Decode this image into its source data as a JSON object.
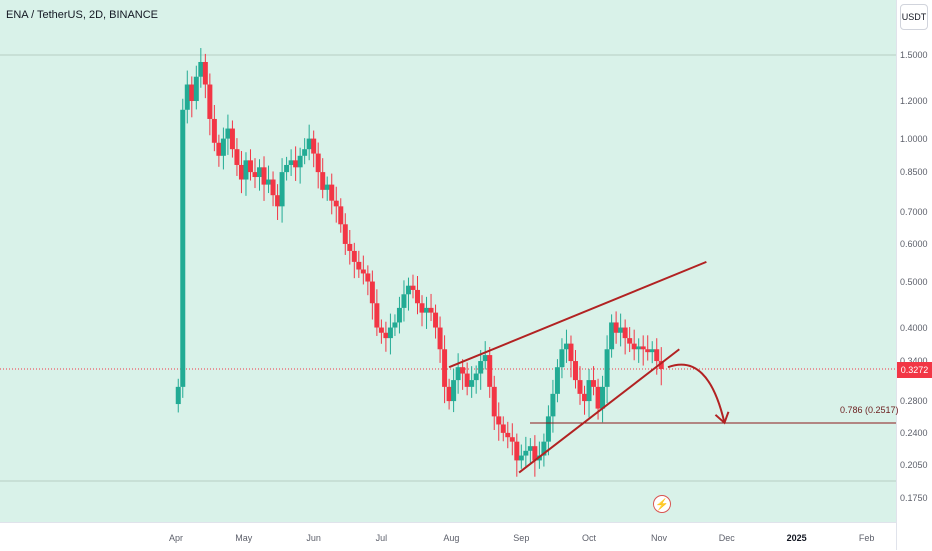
{
  "header": {
    "symbol_title": "ENA / TetherUS, 2D, BINANCE",
    "currency_button": "USDT"
  },
  "price_axis": {
    "labels": [
      "1.5000",
      "1.2000",
      "1.0000",
      "0.8500",
      "0.7000",
      "0.6000",
      "0.5000",
      "0.4000",
      "0.3400",
      "0.2800",
      "0.2400",
      "0.2050",
      "0.1750"
    ],
    "current_price": "0.3272"
  },
  "time_axis": {
    "labels": [
      "Apr",
      "May",
      "Jun",
      "Jul",
      "Aug",
      "Sep",
      "Oct",
      "Nov",
      "Dec",
      "2025",
      "Feb"
    ]
  },
  "annotations": {
    "fib_label": "0.786 (0.2517)",
    "bolt_icon": "lightning-bolt-icon"
  },
  "colors": {
    "background": "#d9f2e9",
    "up_candle": "#22ab94",
    "down_candle": "#f23645",
    "drawing": "#b22222"
  },
  "chart_data": {
    "type": "candlestick",
    "title": "ENA / TetherUS, 2D, BINANCE",
    "scale": "log",
    "ylim": [
      0.16,
      1.8
    ],
    "x_ticks": [
      "Apr",
      "May",
      "Jun",
      "Jul",
      "Aug",
      "Sep",
      "Oct",
      "Nov",
      "Dec",
      "2025",
      "Feb"
    ],
    "current_price": 0.3272,
    "fib_level": {
      "label": "0.786",
      "value": 0.2517
    },
    "series": [
      {
        "name": "ENA/USDT 2D close (approx.)",
        "x": [
          "2024-04-02",
          "2024-04-04",
          "2024-04-06",
          "2024-04-08",
          "2024-04-10",
          "2024-04-12",
          "2024-04-14",
          "2024-04-16",
          "2024-04-18",
          "2024-04-20",
          "2024-04-22",
          "2024-04-24",
          "2024-04-26",
          "2024-04-28",
          "2024-04-30",
          "2024-05-02",
          "2024-05-04",
          "2024-05-06",
          "2024-05-08",
          "2024-05-10",
          "2024-05-12",
          "2024-05-14",
          "2024-05-16",
          "2024-05-18",
          "2024-05-20",
          "2024-05-22",
          "2024-05-24",
          "2024-05-26",
          "2024-05-28",
          "2024-05-30",
          "2024-06-01",
          "2024-06-03",
          "2024-06-05",
          "2024-06-07",
          "2024-06-09",
          "2024-06-11",
          "2024-06-13",
          "2024-06-15",
          "2024-06-17",
          "2024-06-19",
          "2024-06-21",
          "2024-06-23",
          "2024-06-25",
          "2024-06-27",
          "2024-06-29",
          "2024-07-01",
          "2024-07-03",
          "2024-07-05",
          "2024-07-07",
          "2024-07-09",
          "2024-07-11",
          "2024-07-13",
          "2024-07-15",
          "2024-07-17",
          "2024-07-19",
          "2024-07-21",
          "2024-07-23",
          "2024-07-25",
          "2024-07-27",
          "2024-07-29",
          "2024-07-31",
          "2024-08-02",
          "2024-08-04",
          "2024-08-06",
          "2024-08-08",
          "2024-08-10",
          "2024-08-12",
          "2024-08-14",
          "2024-08-16",
          "2024-08-18",
          "2024-08-20",
          "2024-08-22",
          "2024-08-24",
          "2024-08-26",
          "2024-08-28",
          "2024-08-30",
          "2024-09-01",
          "2024-09-03",
          "2024-09-05",
          "2024-09-07",
          "2024-09-09",
          "2024-09-11",
          "2024-09-13",
          "2024-09-15",
          "2024-09-17",
          "2024-09-19",
          "2024-09-21",
          "2024-09-23",
          "2024-09-25",
          "2024-09-27",
          "2024-09-29",
          "2024-10-01",
          "2024-10-03",
          "2024-10-05",
          "2024-10-07",
          "2024-10-09",
          "2024-10-11",
          "2024-10-13",
          "2024-10-15",
          "2024-10-17",
          "2024-10-19",
          "2024-10-21",
          "2024-10-23",
          "2024-10-25",
          "2024-10-27",
          "2024-10-29",
          "2024-10-31",
          "2024-11-02"
        ],
        "close": [
          0.3,
          1.15,
          1.3,
          1.2,
          1.35,
          1.45,
          1.3,
          1.1,
          0.98,
          0.92,
          1.0,
          1.05,
          0.95,
          0.88,
          0.82,
          0.9,
          0.85,
          0.83,
          0.87,
          0.8,
          0.82,
          0.76,
          0.72,
          0.85,
          0.88,
          0.9,
          0.87,
          0.92,
          0.95,
          1.0,
          0.93,
          0.85,
          0.78,
          0.8,
          0.74,
          0.72,
          0.66,
          0.6,
          0.58,
          0.55,
          0.53,
          0.52,
          0.5,
          0.45,
          0.4,
          0.39,
          0.38,
          0.4,
          0.41,
          0.44,
          0.47,
          0.49,
          0.48,
          0.45,
          0.43,
          0.44,
          0.43,
          0.4,
          0.36,
          0.3,
          0.28,
          0.31,
          0.33,
          0.32,
          0.3,
          0.31,
          0.32,
          0.34,
          0.35,
          0.3,
          0.26,
          0.25,
          0.24,
          0.235,
          0.23,
          0.21,
          0.215,
          0.22,
          0.225,
          0.21,
          0.215,
          0.23,
          0.26,
          0.29,
          0.33,
          0.36,
          0.37,
          0.34,
          0.31,
          0.29,
          0.28,
          0.31,
          0.3,
          0.27,
          0.3,
          0.36,
          0.41,
          0.39,
          0.4,
          0.38,
          0.37,
          0.36,
          0.365,
          0.36,
          0.355,
          0.36,
          0.34,
          0.3272
        ]
      }
    ],
    "trendlines": [
      {
        "name": "upper channel line",
        "from": [
          "2024-07-31",
          0.33
        ],
        "to": [
          "2024-11-22",
          0.55
        ]
      },
      {
        "name": "lower channel line",
        "from": [
          "2024-08-31",
          0.198
        ],
        "to": [
          "2024-11-10",
          0.36
        ]
      },
      {
        "name": "projection arrow",
        "from": [
          "2024-11-05",
          0.33
        ],
        "to": [
          "2024-11-30",
          0.252
        ]
      }
    ]
  }
}
